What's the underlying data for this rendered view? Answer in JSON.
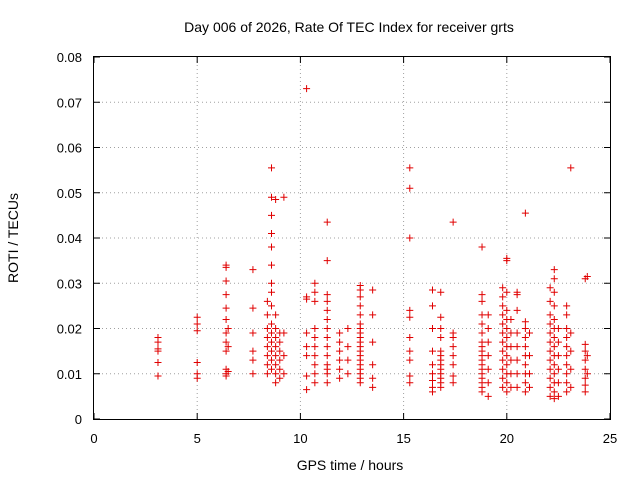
{
  "chart_data": {
    "type": "scatter",
    "title": "Day 006 of 2026, Rate Of TEC Index for receiver grts",
    "xlabel": "GPS time / hours",
    "ylabel": "ROTI / TECUs",
    "xlim": [
      0,
      25
    ],
    "ylim": [
      0,
      0.08
    ],
    "xticks": [
      "0",
      "5",
      "10",
      "15",
      "20",
      "25"
    ],
    "yticks": [
      "0",
      "0.01",
      "0.02",
      "0.03",
      "0.04",
      "0.05",
      "0.06",
      "0.07",
      "0.08"
    ],
    "grid": true,
    "marker": "+",
    "color": "#e00000",
    "series": [
      {
        "name": "ROTI",
        "points": [
          [
            3.1,
            0.0095
          ],
          [
            3.1,
            0.0125
          ],
          [
            3.1,
            0.015
          ],
          [
            3.1,
            0.0155
          ],
          [
            3.1,
            0.017
          ],
          [
            3.1,
            0.018
          ],
          [
            5.0,
            0.009
          ],
          [
            5.0,
            0.01
          ],
          [
            5.0,
            0.0125
          ],
          [
            5.0,
            0.0195
          ],
          [
            5.0,
            0.021
          ],
          [
            5.0,
            0.0225
          ],
          [
            6.4,
            0.0095
          ],
          [
            6.4,
            0.01
          ],
          [
            6.4,
            0.011
          ],
          [
            6.4,
            0.015
          ],
          [
            6.4,
            0.017
          ],
          [
            6.4,
            0.019
          ],
          [
            6.4,
            0.022
          ],
          [
            6.4,
            0.0245
          ],
          [
            6.4,
            0.0275
          ],
          [
            6.4,
            0.0305
          ],
          [
            6.4,
            0.0335
          ],
          [
            6.4,
            0.034
          ],
          [
            6.5,
            0.0105
          ],
          [
            6.5,
            0.016
          ],
          [
            6.5,
            0.02
          ],
          [
            7.7,
            0.01
          ],
          [
            7.7,
            0.013
          ],
          [
            7.7,
            0.015
          ],
          [
            7.7,
            0.019
          ],
          [
            7.7,
            0.0245
          ],
          [
            7.7,
            0.033
          ],
          [
            8.4,
            0.01
          ],
          [
            8.4,
            0.012
          ],
          [
            8.4,
            0.014
          ],
          [
            8.4,
            0.016
          ],
          [
            8.4,
            0.018
          ],
          [
            8.4,
            0.02
          ],
          [
            8.4,
            0.023
          ],
          [
            8.4,
            0.026
          ],
          [
            8.6,
            0.011
          ],
          [
            8.6,
            0.013
          ],
          [
            8.6,
            0.015
          ],
          [
            8.6,
            0.017
          ],
          [
            8.6,
            0.019
          ],
          [
            8.6,
            0.021
          ],
          [
            8.6,
            0.025
          ],
          [
            8.6,
            0.028
          ],
          [
            8.6,
            0.03
          ],
          [
            8.6,
            0.034
          ],
          [
            8.6,
            0.038
          ],
          [
            8.6,
            0.041
          ],
          [
            8.6,
            0.045
          ],
          [
            8.6,
            0.049
          ],
          [
            8.6,
            0.0555
          ],
          [
            8.8,
            0.008
          ],
          [
            8.8,
            0.01
          ],
          [
            8.8,
            0.012
          ],
          [
            8.8,
            0.014
          ],
          [
            8.8,
            0.016
          ],
          [
            8.8,
            0.018
          ],
          [
            8.8,
            0.02
          ],
          [
            8.8,
            0.023
          ],
          [
            8.8,
            0.0485
          ],
          [
            9.0,
            0.009
          ],
          [
            9.0,
            0.011
          ],
          [
            9.0,
            0.013
          ],
          [
            9.0,
            0.015
          ],
          [
            9.0,
            0.017
          ],
          [
            9.0,
            0.019
          ],
          [
            9.2,
            0.01
          ],
          [
            9.2,
            0.014
          ],
          [
            9.2,
            0.019
          ],
          [
            9.2,
            0.049
          ],
          [
            10.3,
            0.0065
          ],
          [
            10.3,
            0.0095
          ],
          [
            10.3,
            0.014
          ],
          [
            10.3,
            0.016
          ],
          [
            10.3,
            0.019
          ],
          [
            10.3,
            0.0265
          ],
          [
            10.3,
            0.027
          ],
          [
            10.3,
            0.073
          ],
          [
            10.7,
            0.008
          ],
          [
            10.7,
            0.01
          ],
          [
            10.7,
            0.012
          ],
          [
            10.7,
            0.014
          ],
          [
            10.7,
            0.016
          ],
          [
            10.7,
            0.018
          ],
          [
            10.7,
            0.02
          ],
          [
            10.7,
            0.026
          ],
          [
            10.7,
            0.028
          ],
          [
            10.7,
            0.03
          ],
          [
            11.3,
            0.008
          ],
          [
            11.3,
            0.01
          ],
          [
            11.3,
            0.011
          ],
          [
            11.3,
            0.012
          ],
          [
            11.3,
            0.014
          ],
          [
            11.3,
            0.016
          ],
          [
            11.3,
            0.018
          ],
          [
            11.3,
            0.02
          ],
          [
            11.3,
            0.022
          ],
          [
            11.3,
            0.024
          ],
          [
            11.3,
            0.026
          ],
          [
            11.3,
            0.0275
          ],
          [
            11.3,
            0.035
          ],
          [
            11.3,
            0.0435
          ],
          [
            11.9,
            0.009
          ],
          [
            11.9,
            0.011
          ],
          [
            11.9,
            0.013
          ],
          [
            11.9,
            0.015
          ],
          [
            11.9,
            0.017
          ],
          [
            11.9,
            0.019
          ],
          [
            12.3,
            0.01
          ],
          [
            12.3,
            0.013
          ],
          [
            12.3,
            0.016
          ],
          [
            12.3,
            0.02
          ],
          [
            12.9,
            0.008
          ],
          [
            12.9,
            0.009
          ],
          [
            12.9,
            0.01
          ],
          [
            12.9,
            0.011
          ],
          [
            12.9,
            0.012
          ],
          [
            12.9,
            0.013
          ],
          [
            12.9,
            0.014
          ],
          [
            12.9,
            0.015
          ],
          [
            12.9,
            0.016
          ],
          [
            12.9,
            0.017
          ],
          [
            12.9,
            0.018
          ],
          [
            12.9,
            0.019
          ],
          [
            12.9,
            0.02
          ],
          [
            12.9,
            0.021
          ],
          [
            12.9,
            0.023
          ],
          [
            12.9,
            0.025
          ],
          [
            12.9,
            0.027
          ],
          [
            12.9,
            0.0285
          ],
          [
            12.9,
            0.0295
          ],
          [
            13.5,
            0.007
          ],
          [
            13.5,
            0.009
          ],
          [
            13.5,
            0.012
          ],
          [
            13.5,
            0.017
          ],
          [
            13.5,
            0.023
          ],
          [
            13.5,
            0.0285
          ],
          [
            15.3,
            0.008
          ],
          [
            15.3,
            0.0095
          ],
          [
            15.3,
            0.013
          ],
          [
            15.3,
            0.015
          ],
          [
            15.3,
            0.018
          ],
          [
            15.3,
            0.0225
          ],
          [
            15.3,
            0.024
          ],
          [
            15.3,
            0.04
          ],
          [
            15.3,
            0.051
          ],
          [
            15.3,
            0.0555
          ],
          [
            16.4,
            0.006
          ],
          [
            16.4,
            0.007
          ],
          [
            16.4,
            0.0085
          ],
          [
            16.4,
            0.01
          ],
          [
            16.4,
            0.012
          ],
          [
            16.4,
            0.015
          ],
          [
            16.4,
            0.02
          ],
          [
            16.4,
            0.025
          ],
          [
            16.4,
            0.0285
          ],
          [
            16.8,
            0.007
          ],
          [
            16.8,
            0.008
          ],
          [
            16.8,
            0.009
          ],
          [
            16.8,
            0.01
          ],
          [
            16.8,
            0.011
          ],
          [
            16.8,
            0.012
          ],
          [
            16.8,
            0.013
          ],
          [
            16.8,
            0.014
          ],
          [
            16.8,
            0.015
          ],
          [
            16.8,
            0.018
          ],
          [
            16.8,
            0.02
          ],
          [
            16.8,
            0.0225
          ],
          [
            16.8,
            0.028
          ],
          [
            17.4,
            0.008
          ],
          [
            17.4,
            0.0095
          ],
          [
            17.4,
            0.012
          ],
          [
            17.4,
            0.014
          ],
          [
            17.4,
            0.016
          ],
          [
            17.4,
            0.018
          ],
          [
            17.4,
            0.019
          ],
          [
            17.4,
            0.0435
          ],
          [
            18.8,
            0.006
          ],
          [
            18.8,
            0.007
          ],
          [
            18.8,
            0.008
          ],
          [
            18.8,
            0.009
          ],
          [
            18.8,
            0.01
          ],
          [
            18.8,
            0.011
          ],
          [
            18.8,
            0.012
          ],
          [
            18.8,
            0.013
          ],
          [
            18.8,
            0.014
          ],
          [
            18.8,
            0.015
          ],
          [
            18.8,
            0.016
          ],
          [
            18.8,
            0.017
          ],
          [
            18.8,
            0.019
          ],
          [
            18.8,
            0.021
          ],
          [
            18.8,
            0.023
          ],
          [
            18.8,
            0.026
          ],
          [
            18.8,
            0.0275
          ],
          [
            18.8,
            0.038
          ],
          [
            19.1,
            0.005
          ],
          [
            19.1,
            0.008
          ],
          [
            19.1,
            0.011
          ],
          [
            19.1,
            0.014
          ],
          [
            19.1,
            0.017
          ],
          [
            19.1,
            0.02
          ],
          [
            19.1,
            0.023
          ],
          [
            19.8,
            0.007
          ],
          [
            19.8,
            0.009
          ],
          [
            19.8,
            0.011
          ],
          [
            19.8,
            0.013
          ],
          [
            19.8,
            0.015
          ],
          [
            19.8,
            0.017
          ],
          [
            19.8,
            0.019
          ],
          [
            19.8,
            0.021
          ],
          [
            19.8,
            0.023
          ],
          [
            19.8,
            0.025
          ],
          [
            19.8,
            0.027
          ],
          [
            19.8,
            0.029
          ],
          [
            20.0,
            0.006
          ],
          [
            20.0,
            0.008
          ],
          [
            20.0,
            0.01
          ],
          [
            20.0,
            0.012
          ],
          [
            20.0,
            0.014
          ],
          [
            20.0,
            0.016
          ],
          [
            20.0,
            0.018
          ],
          [
            20.0,
            0.02
          ],
          [
            20.0,
            0.022
          ],
          [
            20.0,
            0.024
          ],
          [
            20.0,
            0.028
          ],
          [
            20.0,
            0.035
          ],
          [
            20.0,
            0.0355
          ],
          [
            20.2,
            0.007
          ],
          [
            20.2,
            0.01
          ],
          [
            20.2,
            0.013
          ],
          [
            20.2,
            0.016
          ],
          [
            20.2,
            0.019
          ],
          [
            20.2,
            0.022
          ],
          [
            20.5,
            0.007
          ],
          [
            20.5,
            0.01
          ],
          [
            20.5,
            0.013
          ],
          [
            20.5,
            0.016
          ],
          [
            20.5,
            0.019
          ],
          [
            20.5,
            0.024
          ],
          [
            20.5,
            0.0275
          ],
          [
            20.5,
            0.028
          ],
          [
            20.9,
            0.006
          ],
          [
            20.9,
            0.008
          ],
          [
            20.9,
            0.01
          ],
          [
            20.9,
            0.012
          ],
          [
            20.9,
            0.014
          ],
          [
            20.9,
            0.016
          ],
          [
            20.9,
            0.018
          ],
          [
            20.9,
            0.02
          ],
          [
            20.9,
            0.0215
          ],
          [
            20.9,
            0.0455
          ],
          [
            21.1,
            0.007
          ],
          [
            21.1,
            0.01
          ],
          [
            21.1,
            0.014
          ],
          [
            21.1,
            0.019
          ],
          [
            22.1,
            0.005
          ],
          [
            22.1,
            0.007
          ],
          [
            22.1,
            0.009
          ],
          [
            22.1,
            0.011
          ],
          [
            22.1,
            0.013
          ],
          [
            22.1,
            0.015
          ],
          [
            22.1,
            0.017
          ],
          [
            22.1,
            0.019
          ],
          [
            22.1,
            0.021
          ],
          [
            22.1,
            0.023
          ],
          [
            22.1,
            0.026
          ],
          [
            22.1,
            0.029
          ],
          [
            22.3,
            0.0045
          ],
          [
            22.3,
            0.006
          ],
          [
            22.3,
            0.008
          ],
          [
            22.3,
            0.01
          ],
          [
            22.3,
            0.012
          ],
          [
            22.3,
            0.014
          ],
          [
            22.3,
            0.016
          ],
          [
            22.3,
            0.018
          ],
          [
            22.3,
            0.02
          ],
          [
            22.3,
            0.022
          ],
          [
            22.3,
            0.025
          ],
          [
            22.3,
            0.028
          ],
          [
            22.3,
            0.031
          ],
          [
            22.3,
            0.033
          ],
          [
            22.5,
            0.005
          ],
          [
            22.5,
            0.008
          ],
          [
            22.5,
            0.011
          ],
          [
            22.5,
            0.014
          ],
          [
            22.5,
            0.017
          ],
          [
            22.5,
            0.02
          ],
          [
            22.9,
            0.006
          ],
          [
            22.9,
            0.008
          ],
          [
            22.9,
            0.01
          ],
          [
            22.9,
            0.012
          ],
          [
            22.9,
            0.014
          ],
          [
            22.9,
            0.016
          ],
          [
            22.9,
            0.018
          ],
          [
            22.9,
            0.02
          ],
          [
            22.9,
            0.023
          ],
          [
            22.9,
            0.025
          ],
          [
            23.1,
            0.007
          ],
          [
            23.1,
            0.011
          ],
          [
            23.1,
            0.015
          ],
          [
            23.1,
            0.019
          ],
          [
            23.1,
            0.0555
          ],
          [
            23.8,
            0.006
          ],
          [
            23.8,
            0.0075
          ],
          [
            23.8,
            0.009
          ],
          [
            23.8,
            0.011
          ],
          [
            23.8,
            0.013
          ],
          [
            23.8,
            0.015
          ],
          [
            23.8,
            0.0165
          ],
          [
            23.8,
            0.031
          ],
          [
            23.9,
            0.01
          ],
          [
            23.9,
            0.014
          ],
          [
            23.9,
            0.0315
          ]
        ]
      }
    ]
  }
}
